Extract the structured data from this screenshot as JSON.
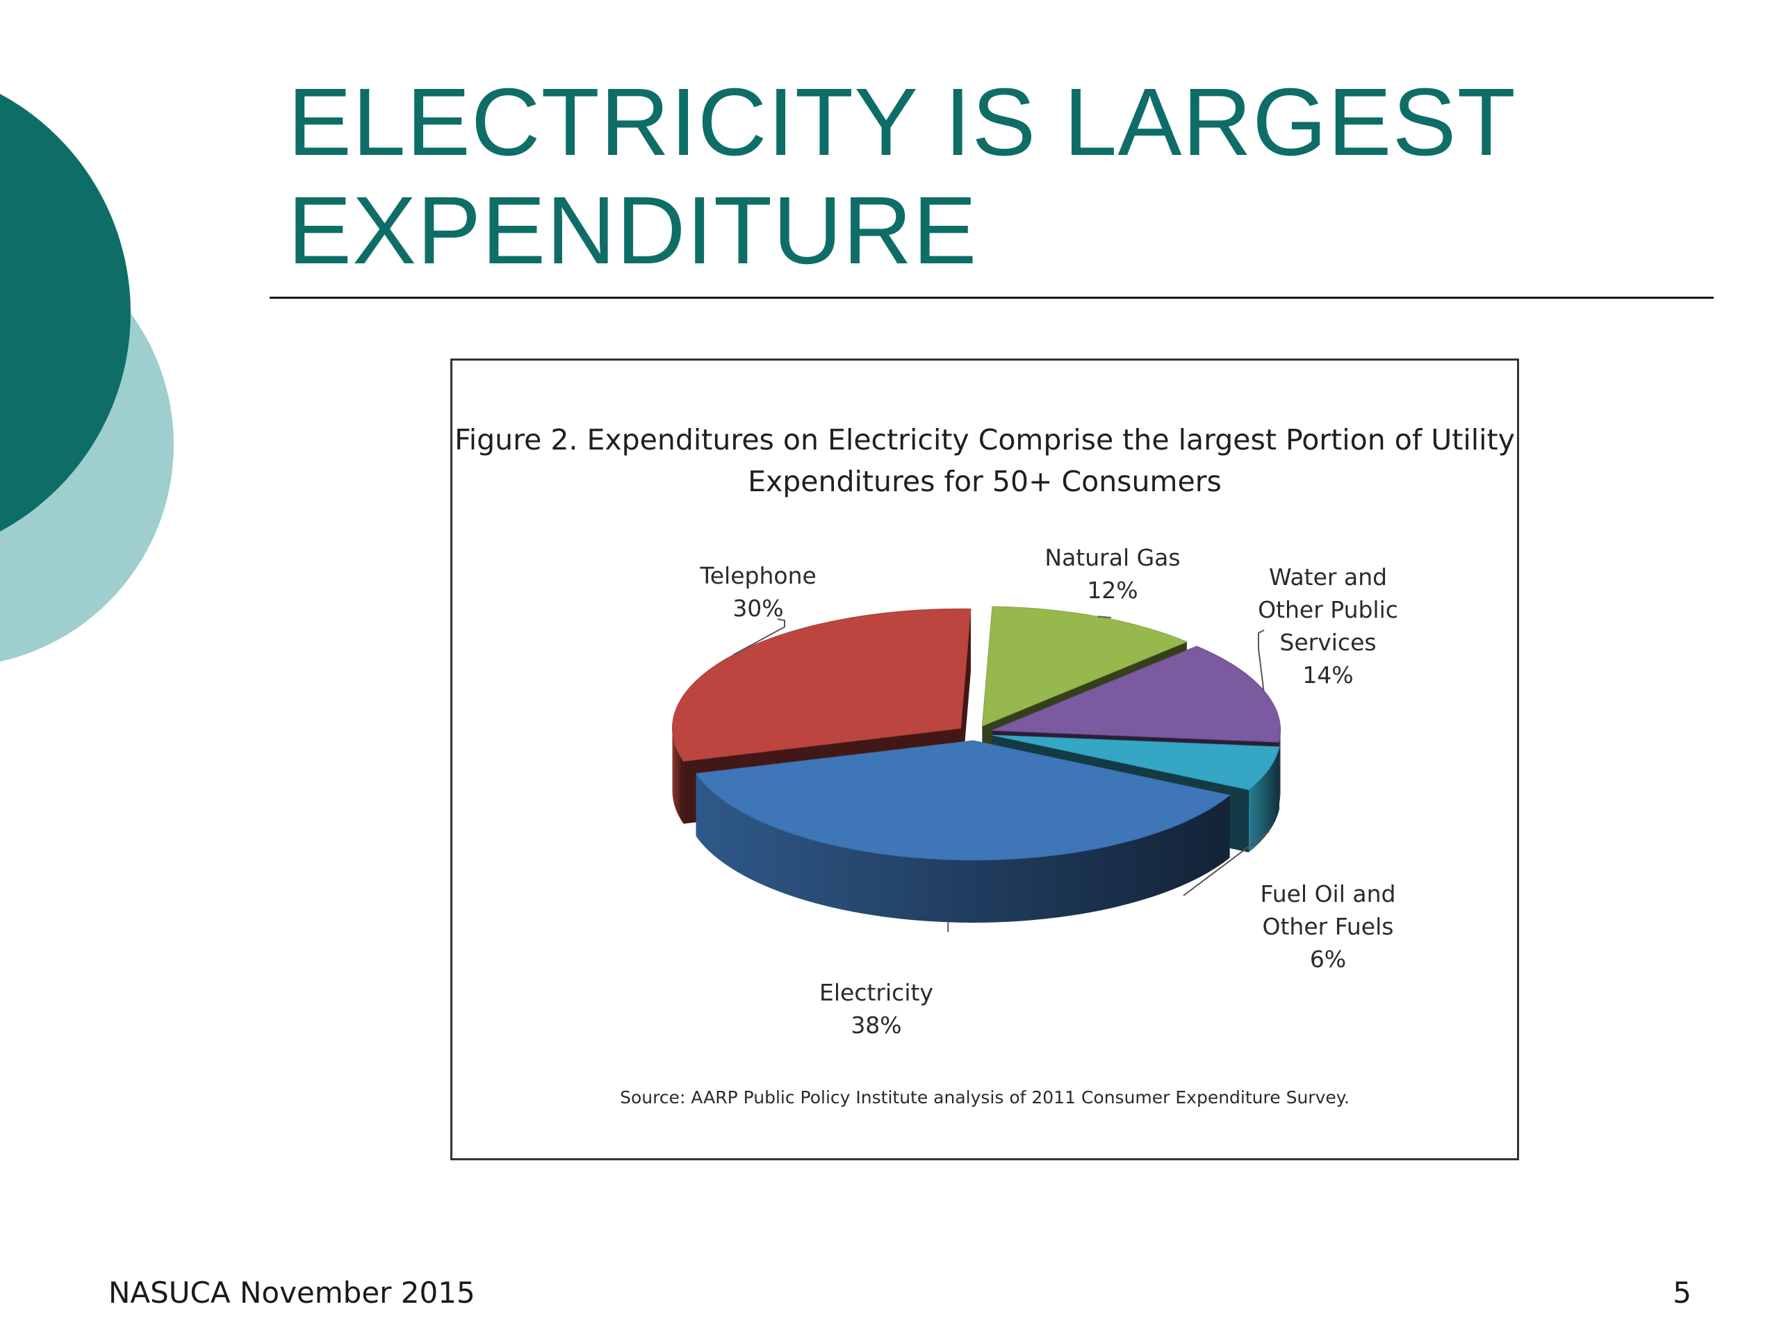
{
  "slide": {
    "title": "ELECTRICITY IS LARGEST EXPENDITURE",
    "footer_left": "NASUCA November 2015",
    "page_number": "5",
    "accent_color": "#0e6e67",
    "accent_light_color": "#9ecfce"
  },
  "chart_data": {
    "type": "pie",
    "style": "3d-exploded",
    "title": "Figure 2. Expenditures on Electricity Comprise the largest Portion of Utility Expenditures for 50+ Consumers",
    "source": "Source:  AARP Public Policy Institute analysis of 2011 Consumer Expenditure Survey.",
    "slices": [
      {
        "name": "Electricity",
        "value": 38,
        "label": "Electricity\n38%",
        "color": "#3f76b7"
      },
      {
        "name": "Telephone",
        "value": 30,
        "label": "Telephone\n30%",
        "color": "#bc4540"
      },
      {
        "name": "Natural Gas",
        "value": 12,
        "label": "Natural Gas\n12%",
        "color": "#96b84d"
      },
      {
        "name": "Water and Other Public Services",
        "value": 14,
        "label": "Water and\nOther Public\nServices\n14%",
        "color": "#7b5aa0"
      },
      {
        "name": "Fuel Oil and Other Fuels",
        "value": 6,
        "label": "Fuel Oil and\nOther Fuels\n6%",
        "color": "#35a6c4"
      }
    ]
  }
}
